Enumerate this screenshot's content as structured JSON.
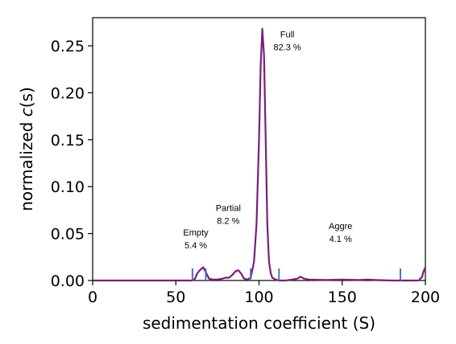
{
  "chart_data": {
    "type": "line",
    "title": "",
    "xlabel": "sedimentation coefficient (S)",
    "ylabel_prefix": "normalized ",
    "ylabel_italic": "c",
    "ylabel_suffix": "(s)",
    "xlim": [
      0,
      200
    ],
    "ylim": [
      0,
      0.28
    ],
    "xticks": [
      "0",
      "50",
      "100",
      "150",
      "200"
    ],
    "xtick_values": [
      0,
      50,
      100,
      150,
      200
    ],
    "yticks": [
      "0.00",
      "0.05",
      "0.10",
      "0.15",
      "0.20",
      "0.25"
    ],
    "ytick_values": [
      0,
      0.05,
      0.1,
      0.15,
      0.2,
      0.25
    ],
    "grid": false,
    "line_color": "#7b1e7a",
    "marker_color": "#4a72c4",
    "series": [
      {
        "x": [
          0,
          55,
          60,
          61.5,
          63,
          65,
          66.5,
          68,
          70,
          72,
          75,
          78,
          80,
          82,
          84,
          86,
          87.5,
          89,
          91,
          93,
          95,
          97,
          98.5,
          100,
          101,
          102,
          103,
          104,
          105,
          106,
          107,
          108,
          110,
          112,
          116,
          120,
          123,
          125,
          127,
          130,
          140,
          150,
          160,
          165,
          170,
          180,
          190,
          196,
          198,
          199,
          200
        ],
        "y": [
          0,
          0,
          0,
          0.002,
          0.008,
          0.012,
          0.014,
          0.009,
          0.002,
          0.001,
          0.001,
          0.002,
          0.003,
          0.003,
          0.006,
          0.01,
          0.011,
          0.008,
          0.002,
          0.001,
          0.003,
          0.02,
          0.06,
          0.15,
          0.23,
          0.268,
          0.24,
          0.15,
          0.06,
          0.02,
          0.008,
          0.003,
          0.001,
          0,
          0,
          0.001,
          0.002,
          0.004,
          0.002,
          0.001,
          0.0005,
          0.001,
          0.0005,
          0.001,
          0.0005,
          0,
          0,
          0,
          0.004,
          0.01,
          0.014
        ]
      }
    ],
    "boundary_markers_x": [
      60,
      68,
      95,
      112,
      185
    ],
    "annotations": [
      {
        "line1": "Empty",
        "line2": "5.4 %",
        "x": 62,
        "y": 0.048
      },
      {
        "line1": "Partial",
        "line2": "8.2 %",
        "x": 81.5,
        "y": 0.074
      },
      {
        "line1": "Full",
        "line2": "82.3 %",
        "x": 117,
        "y": 0.259
      },
      {
        "line1": "Aggre",
        "line2": "4.1 %",
        "x": 149,
        "y": 0.055
      }
    ]
  }
}
